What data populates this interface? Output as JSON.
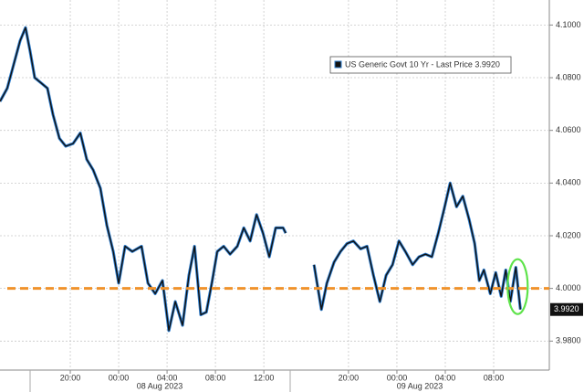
{
  "chart_data": {
    "type": "line",
    "series": [
      {
        "name": "US Generic Govt 10 Yr - Last Price",
        "color": "#111111",
        "edge_color": "#2f7fd0",
        "last_price": {
          "value": 3.992,
          "label": "3.9920"
        }
      }
    ],
    "x": [
      0.19,
      0.79,
      1.32,
      1.85,
      2.3,
      2.68,
      3.06,
      3.59,
      4.11,
      4.57,
      5.1,
      5.62,
      6.23,
      6.83,
      7.36,
      7.89,
      8.49,
      9.02,
      9.55,
      10.0,
      10.53,
      11.13,
      11.89,
      12.42,
      13.02,
      13.62,
      14.15,
      14.68,
      15.28,
      15.81,
      16.27,
      16.79,
      17.25,
      17.7,
      18.15,
      18.68,
      19.21,
      19.81,
      20.34,
      20.87,
      21.4,
      21.93,
      22.45,
      22.98,
      23.59,
      23.81,
      25.0,
      26.15,
      26.76,
      27.21,
      27.81,
      28.34,
      28.87,
      29.4,
      30.0,
      30.53,
      31.06,
      31.59,
      32.11,
      32.64,
      33.17,
      33.7,
      34.3,
      34.83,
      35.36,
      35.89,
      36.42,
      36.95,
      37.4,
      37.93,
      38.45,
      38.98,
      39.43,
      39.81,
      40.19,
      40.72,
      41.17,
      41.62,
      42.0,
      42.38,
      42.83,
      43.21
    ],
    "values": [
      4.071,
      4.076,
      4.085,
      4.094,
      4.099,
      4.09,
      4.08,
      4.078,
      4.076,
      4.066,
      4.057,
      4.054,
      4.055,
      4.059,
      4.049,
      4.045,
      4.038,
      4.024,
      4.014,
      4.002,
      4.016,
      4.014,
      4.016,
      4.002,
      3.998,
      4.003,
      3.984,
      3.995,
      3.986,
      4.005,
      4.016,
      3.99,
      3.991,
      4.002,
      4.014,
      4.016,
      4.013,
      4.016,
      4.023,
      4.018,
      4.028,
      4.021,
      4.012,
      4.023,
      4.023,
      4.021,
      null,
      4.009,
      3.992,
      4.002,
      4.01,
      4.014,
      4.017,
      4.018,
      4.015,
      4.016,
      4.005,
      3.995,
      4.005,
      4.009,
      4.018,
      4.014,
      4.009,
      4.012,
      4.013,
      4.012,
      4.021,
      4.031,
      4.04,
      4.031,
      4.035,
      4.026,
      4.017,
      4.003,
      4.007,
      3.998,
      4.006,
      3.997,
      4.007,
      3.995,
      4.008,
      3.992
    ],
    "xlim": [
      0.19,
      45.6
    ],
    "xticks": [
      {
        "value": 6,
        "label": "20:00"
      },
      {
        "value": 10,
        "label": "00:00"
      },
      {
        "value": 14,
        "label": "04:00"
      },
      {
        "value": 18,
        "label": "08:00"
      },
      {
        "value": 22,
        "label": "12:00"
      },
      {
        "value": 29,
        "label": "20:00"
      },
      {
        "value": 33,
        "label": "00:00"
      },
      {
        "value": 37,
        "label": "04:00"
      },
      {
        "value": 41,
        "label": "08:00"
      }
    ],
    "date_labels": [
      "08 Aug 2023",
      "09 Aug 2023"
    ],
    "ylim": [
      3.969,
      4.1095
    ],
    "yticks": [
      {
        "value": 3.98,
        "label": "3.9800"
      },
      {
        "value": 4.0,
        "label": "4.0000"
      },
      {
        "value": 4.02,
        "label": "4.0200"
      },
      {
        "value": 4.04,
        "label": "4.0400"
      },
      {
        "value": 4.06,
        "label": "4.0600"
      },
      {
        "value": 4.08,
        "label": "4.0800"
      },
      {
        "value": 4.1,
        "label": "4.1000"
      }
    ],
    "reference_line": {
      "value": 4.0,
      "color": "#f0922b"
    },
    "grid": true,
    "y_axis_side": "right"
  }
}
